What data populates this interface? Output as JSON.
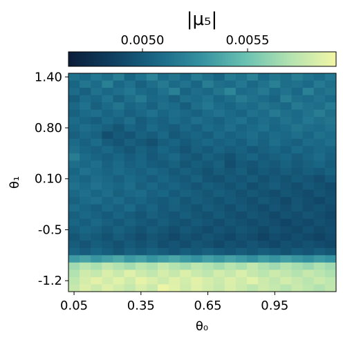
{
  "chart_data": {
    "type": "heatmap",
    "x_label": "θ₀",
    "y_label": "θ₁",
    "x_categories": [
      "0.05",
      null,
      null,
      null,
      null,
      null,
      "0.35",
      null,
      null,
      null,
      null,
      null,
      "0.65",
      null,
      null,
      null,
      null,
      null,
      "0.95",
      null,
      null,
      null,
      null,
      null
    ],
    "y_categories": [
      "1.40",
      null,
      null,
      null,
      null,
      null,
      null,
      "0.80",
      null,
      null,
      null,
      null,
      null,
      null,
      "0.10",
      null,
      null,
      null,
      null,
      null,
      null,
      "-0.5",
      null,
      null,
      null,
      null,
      null,
      null,
      "-1.2",
      null
    ],
    "colormap": [
      "#0b1d39",
      "#0f3f60",
      "#1a6886",
      "#3592a0",
      "#6cc3b2",
      "#b5e3b0",
      "#f2f6a6"
    ],
    "colorbar": {
      "label": "|μ₅|",
      "lim": [
        0.004648,
        0.005921
      ],
      "ticks": [
        {
          "value": 0.005,
          "label": "0.0050"
        },
        {
          "value": 0.0055,
          "label": "0.0055"
        }
      ]
    },
    "values": [
      [
        0.00512,
        0.00508,
        0.00515,
        0.0051,
        0.00518,
        0.00506,
        0.00513,
        0.00521,
        0.00509,
        0.00514,
        0.00507,
        0.00517,
        0.00511,
        0.00505,
        0.00516,
        0.00512,
        0.0052,
        0.00508,
        0.00514,
        0.0051,
        0.00518,
        0.00513,
        0.00509,
        0.00515
      ],
      [
        0.00506,
        0.00514,
        0.00509,
        0.00519,
        0.00507,
        0.00512,
        0.00504,
        0.0051,
        0.00516,
        0.00508,
        0.00513,
        0.00506,
        0.00518,
        0.00511,
        0.00509,
        0.00515,
        0.00507,
        0.00513,
        0.00519,
        0.0051,
        0.00512,
        0.00508,
        0.00516,
        0.00511
      ],
      [
        0.00509,
        0.00503,
        0.00512,
        0.00507,
        0.00511,
        0.00515,
        0.00508,
        0.00506,
        0.00512,
        0.00519,
        0.00505,
        0.0051,
        0.00507,
        0.00514,
        0.00522,
        0.00509,
        0.00511,
        0.00516,
        0.00508,
        0.00513,
        0.00507,
        0.0052,
        0.0051,
        0.00514
      ],
      [
        0.00502,
        0.00509,
        0.00506,
        0.00513,
        0.00504,
        0.0051,
        0.00516,
        0.00507,
        0.00509,
        0.00503,
        0.00511,
        0.00508,
        0.00513,
        0.00506,
        0.0051,
        0.00517,
        0.00512,
        0.00509,
        0.00505,
        0.00518,
        0.00511,
        0.00509,
        0.00513,
        0.00508
      ],
      [
        0.00507,
        0.00512,
        0.00503,
        0.00508,
        0.00514,
        0.00506,
        0.00509,
        0.00504,
        0.00511,
        0.00508,
        0.00502,
        0.0051,
        0.00515,
        0.00509,
        0.00506,
        0.00511,
        0.00508,
        0.00514,
        0.0051,
        0.00507,
        0.00516,
        0.00512,
        0.0051,
        0.00517
      ],
      [
        0.00504,
        0.00508,
        0.00511,
        0.00505,
        0.00509,
        0.00503,
        0.00507,
        0.00512,
        0.00506,
        0.0051,
        0.00507,
        0.00504,
        0.00509,
        0.00513,
        0.00508,
        0.00505,
        0.00512,
        0.00509,
        0.00516,
        0.00511,
        0.00508,
        0.00513,
        0.00518,
        0.00511
      ],
      [
        0.00509,
        0.00505,
        0.00502,
        0.00508,
        0.00504,
        0.0051,
        0.00501,
        0.00506,
        0.00503,
        0.00509,
        0.00505,
        0.00511,
        0.00507,
        0.00504,
        0.00509,
        0.00512,
        0.00506,
        0.0051,
        0.00507,
        0.00513,
        0.00509,
        0.00515,
        0.00511,
        0.00514
      ],
      [
        0.00506,
        0.0051,
        0.00507,
        0.00503,
        0.00498,
        0.00505,
        0.00502,
        0.00508,
        0.00504,
        0.00501,
        0.00507,
        0.00503,
        0.00509,
        0.00506,
        0.00511,
        0.00505,
        0.00508,
        0.00512,
        0.00506,
        0.00509,
        0.00514,
        0.0051,
        0.00508,
        0.00512
      ],
      [
        0.00503,
        0.00507,
        0.00504,
        0.00494,
        0.005,
        0.00497,
        0.00504,
        0.00501,
        0.00507,
        0.00499,
        0.00503,
        0.00506,
        0.00502,
        0.00508,
        0.00504,
        0.00507,
        0.0051,
        0.00505,
        0.00509,
        0.00507,
        0.00511,
        0.00506,
        0.00512,
        0.00509
      ],
      [
        0.00508,
        0.00504,
        0.00509,
        0.00501,
        0.00497,
        0.00503,
        0.00499,
        0.00495,
        0.00502,
        0.00505,
        0.005,
        0.00504,
        0.00507,
        0.00503,
        0.00506,
        0.00502,
        0.00508,
        0.00504,
        0.0051,
        0.00506,
        0.00503,
        0.00509,
        0.00507,
        0.00511
      ],
      [
        0.00511,
        0.00506,
        0.00503,
        0.00507,
        0.00502,
        0.00498,
        0.00504,
        0.005,
        0.00506,
        0.00502,
        0.00497,
        0.00503,
        0.005,
        0.00505,
        0.00501,
        0.00504,
        0.00499,
        0.00503,
        0.00506,
        0.00502,
        0.00508,
        0.00504,
        0.00507,
        0.00505
      ],
      [
        0.00518,
        0.00509,
        0.00505,
        0.00502,
        0.00506,
        0.00501,
        0.00505,
        0.00499,
        0.00503,
        0.00507,
        0.00501,
        0.00498,
        0.00504,
        0.005,
        0.00496,
        0.00502,
        0.00505,
        0.005,
        0.00503,
        0.00506,
        0.00501,
        0.00505,
        0.00509,
        0.00503
      ],
      [
        0.0051,
        0.00507,
        0.00511,
        0.00504,
        0.00508,
        0.00503,
        0.00506,
        0.00502,
        0.005,
        0.00504,
        0.00498,
        0.00502,
        0.00499,
        0.00503,
        0.00494,
        0.005,
        0.00497,
        0.00502,
        0.00499,
        0.00504,
        0.005,
        0.00503,
        0.00506,
        0.00501
      ],
      [
        0.00506,
        0.00512,
        0.00508,
        0.00505,
        0.00509,
        0.00506,
        0.00503,
        0.00507,
        0.00504,
        0.00499,
        0.00503,
        0.005,
        0.00496,
        0.00501,
        0.00498,
        0.00502,
        0.00496,
        0.005,
        0.00497,
        0.00501,
        0.00498,
        0.00502,
        0.00499,
        0.00504
      ],
      [
        0.00509,
        0.00505,
        0.0051,
        0.00507,
        0.00503,
        0.00508,
        0.00505,
        0.00501,
        0.00506,
        0.00502,
        0.00499,
        0.00504,
        0.00497,
        0.00495,
        0.005,
        0.00497,
        0.00501,
        0.00495,
        0.00499,
        0.00496,
        0.005,
        0.00497,
        0.00493,
        0.00499
      ],
      [
        0.00512,
        0.00508,
        0.00513,
        0.00509,
        0.00506,
        0.0051,
        0.00503,
        0.00507,
        0.00502,
        0.00505,
        0.00501,
        0.00497,
        0.00502,
        0.00499,
        0.00496,
        0.005,
        0.00494,
        0.00498,
        0.00501,
        0.00497,
        0.00494,
        0.00499,
        0.00496,
        0.00492
      ],
      [
        0.00507,
        0.00511,
        0.00506,
        0.0051,
        0.00504,
        0.00507,
        0.00509,
        0.00503,
        0.00506,
        0.005,
        0.00504,
        0.00501,
        0.00498,
        0.00502,
        0.00499,
        0.00495,
        0.00499,
        0.00496,
        0.00493,
        0.00498,
        0.00495,
        0.00492,
        0.00497,
        0.00494
      ],
      [
        0.00504,
        0.00508,
        0.00511,
        0.00505,
        0.00509,
        0.00503,
        0.00506,
        0.00502,
        0.005,
        0.00504,
        0.00498,
        0.00502,
        0.00499,
        0.00496,
        0.005,
        0.00497,
        0.00494,
        0.00499,
        0.00496,
        0.00491,
        0.00497,
        0.00494,
        0.0049,
        0.00495
      ],
      [
        0.00509,
        0.00505,
        0.00502,
        0.00507,
        0.00503,
        0.00508,
        0.00501,
        0.00505,
        0.00499,
        0.00503,
        0.005,
        0.00496,
        0.00501,
        0.00498,
        0.00494,
        0.00499,
        0.00496,
        0.00492,
        0.00497,
        0.00494,
        0.00498,
        0.00493,
        0.00496,
        0.00492
      ],
      [
        0.00503,
        0.00507,
        0.00504,
        0.005,
        0.00505,
        0.00501,
        0.00498,
        0.00503,
        0.005,
        0.00497,
        0.00502,
        0.00498,
        0.00495,
        0.005,
        0.00496,
        0.00493,
        0.00498,
        0.00495,
        0.00491,
        0.00496,
        0.00493,
        0.00497,
        0.00494,
        0.0049
      ],
      [
        0.00506,
        0.00502,
        0.00507,
        0.00503,
        0.00499,
        0.00504,
        0.005,
        0.00497,
        0.00502,
        0.00498,
        0.00495,
        0.005,
        0.00497,
        0.00493,
        0.00498,
        0.00495,
        0.00492,
        0.00496,
        0.00493,
        0.00489,
        0.00494,
        0.00491,
        0.00495,
        0.00492
      ],
      [
        0.00502,
        0.00506,
        0.00503,
        0.00499,
        0.00504,
        0.005,
        0.00496,
        0.00501,
        0.00498,
        0.00494,
        0.00499,
        0.00496,
        0.00492,
        0.00497,
        0.00494,
        0.00498,
        0.00495,
        0.00491,
        0.00496,
        0.00493,
        0.0049,
        0.00495,
        0.00491,
        0.00494
      ],
      [
        0.00498,
        0.00503,
        0.005,
        0.00496,
        0.00501,
        0.00497,
        0.00493,
        0.00498,
        0.00495,
        0.00491,
        0.00496,
        0.00493,
        0.00497,
        0.00494,
        0.0049,
        0.00495,
        0.00492,
        0.00488,
        0.00493,
        0.0049,
        0.00494,
        0.00491,
        0.00488,
        0.00492
      ],
      [
        0.00501,
        0.00497,
        0.00502,
        0.00499,
        0.00495,
        0.005,
        0.00496,
        0.00499,
        0.00494,
        0.00497,
        0.00493,
        0.00498,
        0.00495,
        0.00491,
        0.00496,
        0.00493,
        0.00497,
        0.00494,
        0.0049,
        0.00495,
        0.00492,
        0.00496,
        0.00493,
        0.0049
      ],
      [
        0.00505,
        0.00501,
        0.00506,
        0.00502,
        0.00498,
        0.00503,
        0.005,
        0.00504,
        0.00501,
        0.00497,
        0.00502,
        0.00499,
        0.00503,
        0.005,
        0.00497,
        0.00501,
        0.00498,
        0.00502,
        0.00499,
        0.00496,
        0.005,
        0.00497,
        0.00501,
        0.00498
      ],
      [
        0.00532,
        0.00536,
        0.0053,
        0.00534,
        0.00538,
        0.00531,
        0.00535,
        0.00529,
        0.00533,
        0.00537,
        0.00532,
        0.00528,
        0.00534,
        0.0053,
        0.00535,
        0.00531,
        0.00527,
        0.00533,
        0.00529,
        0.00534,
        0.0053,
        0.00526,
        0.00531,
        0.00528
      ],
      [
        0.00565,
        0.00572,
        0.00568,
        0.00575,
        0.0057,
        0.00566,
        0.00573,
        0.00569,
        0.00576,
        0.00571,
        0.00567,
        0.00574,
        0.0057,
        0.00566,
        0.00572,
        0.00568,
        0.00575,
        0.00569,
        0.00565,
        0.00571,
        0.00567,
        0.00563,
        0.00569,
        0.00565
      ],
      [
        0.0057,
        0.0058,
        0.00576,
        0.00583,
        0.00578,
        0.00585,
        0.00579,
        0.00575,
        0.00582,
        0.00577,
        0.00584,
        0.00578,
        0.00574,
        0.00581,
        0.00576,
        0.00583,
        0.00577,
        0.00573,
        0.00579,
        0.00575,
        0.00571,
        0.00577,
        0.00573,
        0.00569
      ],
      [
        0.00574,
        0.00582,
        0.00587,
        0.00581,
        0.00586,
        0.0058,
        0.00588,
        0.00583,
        0.00579,
        0.00585,
        0.00581,
        0.00587,
        0.00582,
        0.00578,
        0.00584,
        0.0058,
        0.00586,
        0.00579,
        0.00575,
        0.00581,
        0.00577,
        0.00573,
        0.00578,
        0.00574
      ],
      [
        0.00577,
        0.00584,
        0.00579,
        0.00585,
        0.00581,
        0.00576,
        0.00583,
        0.00578,
        0.0059,
        0.00586,
        0.0058,
        0.00585,
        0.00581,
        0.00577,
        0.00583,
        0.00579,
        0.00574,
        0.0058,
        0.00576,
        0.00572,
        0.00578,
        0.00574,
        0.0057,
        0.00575
      ]
    ]
  }
}
